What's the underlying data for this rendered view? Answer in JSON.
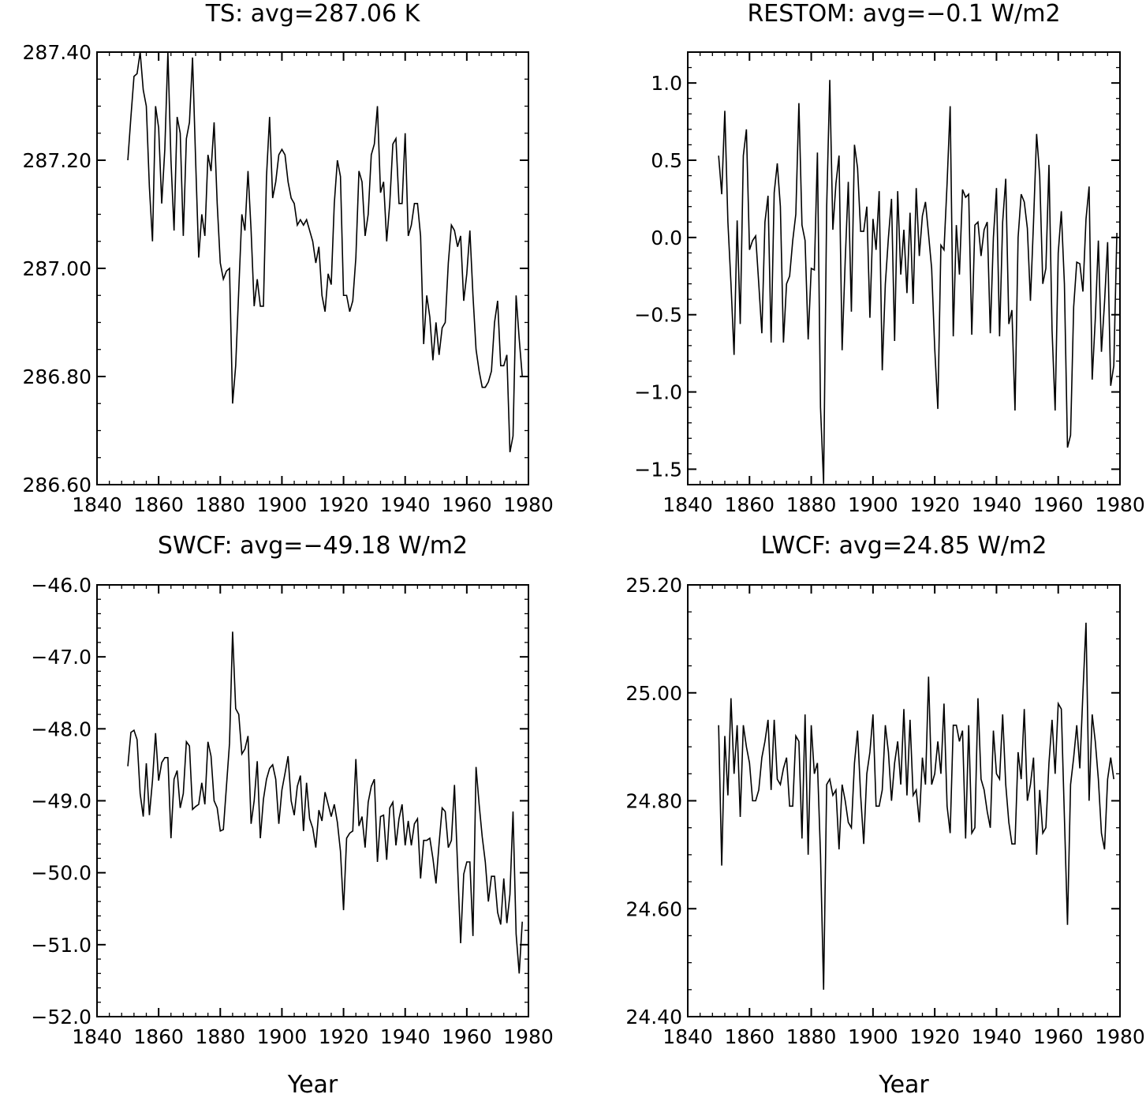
{
  "figure": {
    "background": "#ffffff",
    "line_color": "#000000",
    "x_axis_label": "Year"
  },
  "chart_data": [
    {
      "type": "line",
      "title": "TS: avg=287.06 K",
      "xlabel": "",
      "ylabel": "",
      "xlim": [
        1840,
        1980
      ],
      "ylim": [
        286.6,
        287.4
      ],
      "xticks": [
        1840,
        1860,
        1880,
        1900,
        1920,
        1940,
        1960,
        1980
      ],
      "xtick_labels": [
        "1840",
        "1860",
        "1880",
        "1900",
        "1920",
        "1940",
        "1960",
        "1980"
      ],
      "yticks": [
        286.6,
        286.8,
        287.0,
        287.2,
        287.4
      ],
      "ytick_labels": [
        "286.60",
        "286.80",
        "287.00",
        "287.20",
        "287.40"
      ],
      "y_minor_step": 0.05,
      "x_minor_step": 4,
      "grid": false,
      "x_start": 1850,
      "series": [
        {
          "values": [
            287.2,
            287.28,
            287.355,
            287.36,
            287.4,
            287.33,
            287.3,
            287.15,
            287.05,
            287.3,
            287.26,
            287.12,
            287.22,
            287.4,
            287.2,
            287.07,
            287.28,
            287.25,
            287.06,
            287.24,
            287.27,
            287.39,
            287.2,
            287.02,
            287.1,
            287.06,
            287.21,
            287.18,
            287.27,
            287.12,
            287.01,
            286.98,
            286.995,
            287.0,
            286.75,
            286.82,
            286.96,
            287.1,
            287.07,
            287.18,
            287.07,
            286.93,
            286.98,
            286.93,
            286.93,
            287.17,
            287.28,
            287.13,
            287.16,
            287.21,
            287.22,
            287.21,
            287.16,
            287.13,
            287.12,
            287.08,
            287.09,
            287.08,
            287.09,
            287.07,
            287.05,
            287.01,
            287.04,
            286.95,
            286.92,
            286.99,
            286.97,
            287.12,
            287.2,
            287.17,
            286.95,
            286.95,
            286.92,
            286.94,
            287.02,
            287.18,
            287.16,
            287.06,
            287.1,
            287.21,
            287.23,
            287.3,
            287.14,
            287.16,
            287.05,
            287.12,
            287.23,
            287.24,
            287.12,
            287.12,
            287.25,
            287.06,
            287.08,
            287.12,
            287.12,
            287.06,
            286.86,
            286.95,
            286.91,
            286.83,
            286.9,
            286.84,
            286.89,
            286.9,
            287.01,
            287.08,
            287.07,
            287.04,
            287.06,
            286.94,
            286.99,
            287.07,
            286.95,
            286.85,
            286.81,
            286.78,
            286.78,
            286.79,
            286.81,
            286.9,
            286.94,
            286.82,
            286.82,
            286.84,
            286.66,
            286.69,
            286.95,
            286.87,
            286.8
          ]
        }
      ]
    },
    {
      "type": "line",
      "title": "RESTOM: avg=−0.1 W/m2",
      "xlabel": "",
      "ylabel": "",
      "xlim": [
        1840,
        1980
      ],
      "ylim": [
        -1.6,
        1.2
      ],
      "xticks": [
        1840,
        1860,
        1880,
        1900,
        1920,
        1940,
        1960,
        1980
      ],
      "xtick_labels": [
        "1840",
        "1860",
        "1880",
        "1900",
        "1920",
        "1940",
        "1960",
        "1980"
      ],
      "yticks": [
        -1.5,
        -1.0,
        -0.5,
        0.0,
        0.5,
        1.0
      ],
      "ytick_labels": [
        "−1.5",
        "−1.0",
        "−0.5",
        "0.0",
        "0.5",
        "1.0"
      ],
      "y_minor_step": 0.1,
      "x_minor_step": 4,
      "grid": false,
      "x_start": 1850,
      "series": [
        {
          "values": [
            0.53,
            0.28,
            0.82,
            0.1,
            -0.3,
            -0.76,
            0.11,
            -0.56,
            0.53,
            0.7,
            -0.08,
            -0.02,
            0.01,
            -0.3,
            -0.62,
            0.1,
            0.27,
            -0.68,
            0.29,
            0.48,
            0.2,
            -0.68,
            -0.3,
            -0.25,
            -0.02,
            0.15,
            0.87,
            0.08,
            -0.02,
            -0.66,
            -0.2,
            -0.21,
            0.55,
            -1.1,
            -1.59,
            0.2,
            1.02,
            0.05,
            0.35,
            0.53,
            -0.73,
            -0.15,
            0.36,
            -0.48,
            0.6,
            0.45,
            0.04,
            0.04,
            0.2,
            -0.52,
            0.12,
            -0.08,
            0.3,
            -0.86,
            -0.3,
            0.0,
            0.25,
            -0.67,
            0.3,
            -0.24,
            0.05,
            -0.36,
            0.16,
            -0.43,
            0.32,
            -0.12,
            0.14,
            0.23,
            0.02,
            -0.2,
            -0.72,
            -1.11,
            -0.05,
            -0.08,
            0.35,
            0.85,
            -0.64,
            0.08,
            -0.24,
            0.31,
            0.26,
            0.28,
            -0.63,
            0.08,
            0.1,
            -0.12,
            0.05,
            0.1,
            -0.62,
            0.0,
            0.32,
            -0.64,
            0.1,
            0.38,
            -0.56,
            -0.47,
            -1.12,
            0.0,
            0.28,
            0.23,
            0.06,
            -0.41,
            0.1,
            0.67,
            0.4,
            -0.3,
            -0.2,
            0.47,
            -0.6,
            -1.12,
            -0.1,
            0.17,
            -0.3,
            -1.36,
            -1.28,
            -0.45,
            -0.16,
            -0.17,
            -0.35,
            0.12,
            0.33,
            -0.92,
            -0.53,
            -0.02,
            -0.74,
            -0.42,
            -0.03,
            -0.96,
            -0.83,
            0.03
          ]
        }
      ]
    },
    {
      "type": "line",
      "title": "SWCF: avg=−49.18 W/m2",
      "xlabel": "",
      "ylabel": "",
      "xlim": [
        1840,
        1980
      ],
      "ylim": [
        -52.0,
        -46.0
      ],
      "xticks": [
        1840,
        1860,
        1880,
        1900,
        1920,
        1940,
        1960,
        1980
      ],
      "xtick_labels": [
        "1840",
        "1860",
        "1880",
        "1900",
        "1920",
        "1940",
        "1960",
        "1980"
      ],
      "yticks": [
        -52.0,
        -51.0,
        -50.0,
        -49.0,
        -48.0,
        -47.0,
        -46.0
      ],
      "ytick_labels": [
        "−52.0",
        "−51.0",
        "−50.0",
        "−49.0",
        "−48.0",
        "−47.0",
        "−46.0"
      ],
      "y_minor_step": 0.2,
      "x_minor_step": 4,
      "grid": false,
      "x_start": 1850,
      "series": [
        {
          "values": [
            -48.52,
            -48.05,
            -48.02,
            -48.15,
            -48.9,
            -49.22,
            -48.48,
            -49.2,
            -48.72,
            -48.06,
            -48.72,
            -48.47,
            -48.4,
            -48.4,
            -49.52,
            -48.7,
            -48.58,
            -49.1,
            -48.9,
            -48.18,
            -48.24,
            -49.12,
            -49.08,
            -49.05,
            -48.75,
            -49.05,
            -48.18,
            -48.38,
            -49.0,
            -49.1,
            -49.42,
            -49.4,
            -48.8,
            -48.2,
            -46.65,
            -47.72,
            -47.8,
            -48.35,
            -48.28,
            -48.1,
            -49.32,
            -49.0,
            -48.45,
            -49.52,
            -48.98,
            -48.7,
            -48.55,
            -48.5,
            -48.7,
            -49.32,
            -48.85,
            -48.62,
            -48.38,
            -49.0,
            -49.2,
            -48.8,
            -48.65,
            -49.42,
            -48.75,
            -49.25,
            -49.38,
            -49.65,
            -49.13,
            -49.28,
            -48.88,
            -49.05,
            -49.22,
            -49.05,
            -49.3,
            -49.7,
            -50.52,
            -49.52,
            -49.45,
            -49.42,
            -48.42,
            -49.35,
            -49.22,
            -49.65,
            -49.02,
            -48.8,
            -48.7,
            -49.85,
            -49.22,
            -49.2,
            -49.82,
            -49.1,
            -49.02,
            -49.62,
            -49.25,
            -49.05,
            -49.62,
            -49.28,
            -49.62,
            -49.32,
            -49.25,
            -50.08,
            -49.55,
            -49.55,
            -49.52,
            -49.8,
            -50.15,
            -49.6,
            -49.1,
            -49.15,
            -49.65,
            -49.55,
            -48.78,
            -49.9,
            -50.98,
            -50.02,
            -49.85,
            -49.85,
            -50.88,
            -48.53,
            -49.05,
            -49.5,
            -49.85,
            -50.4,
            -50.05,
            -50.05,
            -50.55,
            -50.72,
            -50.08,
            -50.7,
            -50.3,
            -49.15,
            -50.85,
            -51.4,
            -50.68
          ]
        }
      ]
    },
    {
      "type": "line",
      "title": "LWCF: avg=24.85 W/m2",
      "xlabel": "Year",
      "ylabel": "",
      "xlim": [
        1840,
        1980
      ],
      "ylim": [
        24.4,
        25.2
      ],
      "xticks": [
        1840,
        1860,
        1880,
        1900,
        1920,
        1940,
        1960,
        1980
      ],
      "xtick_labels": [
        "1840",
        "1860",
        "1880",
        "1900",
        "1920",
        "1940",
        "1960",
        "1980"
      ],
      "yticks": [
        24.4,
        24.6,
        24.8,
        25.0,
        25.2
      ],
      "ytick_labels": [
        "24.40",
        "24.60",
        "24.80",
        "25.00",
        "25.20"
      ],
      "y_minor_step": 0.05,
      "x_minor_step": 4,
      "grid": false,
      "x_start": 1850,
      "series": [
        {
          "values": [
            24.94,
            24.68,
            24.92,
            24.81,
            24.99,
            24.85,
            24.94,
            24.77,
            24.94,
            24.9,
            24.87,
            24.8,
            24.8,
            24.82,
            24.88,
            24.91,
            24.95,
            24.82,
            24.95,
            24.84,
            24.83,
            24.86,
            24.88,
            24.79,
            24.79,
            24.92,
            24.91,
            24.73,
            24.96,
            24.7,
            24.94,
            24.85,
            24.87,
            24.7,
            24.45,
            24.83,
            24.84,
            24.81,
            24.82,
            24.71,
            24.83,
            24.8,
            24.76,
            24.75,
            24.87,
            24.93,
            24.81,
            24.72,
            24.85,
            24.89,
            24.96,
            24.79,
            24.79,
            24.82,
            24.94,
            24.89,
            24.8,
            24.87,
            24.91,
            24.83,
            24.97,
            24.81,
            24.95,
            24.81,
            24.82,
            24.76,
            24.88,
            24.83,
            25.03,
            24.83,
            24.85,
            24.91,
            24.85,
            24.98,
            24.79,
            24.74,
            24.94,
            24.94,
            24.91,
            24.93,
            24.73,
            24.94,
            24.74,
            24.75,
            24.99,
            24.84,
            24.82,
            24.78,
            24.75,
            24.93,
            24.85,
            24.84,
            24.96,
            24.83,
            24.76,
            24.72,
            24.72,
            24.89,
            24.84,
            24.97,
            24.8,
            24.83,
            24.88,
            24.7,
            24.82,
            24.74,
            24.75,
            24.87,
            24.95,
            24.85,
            24.98,
            24.97,
            24.77,
            24.57,
            24.83,
            24.88,
            24.94,
            24.86,
            25.0,
            25.13,
            24.8,
            24.96,
            24.91,
            24.84,
            24.74,
            24.71,
            24.84,
            24.88,
            24.84
          ]
        }
      ]
    }
  ]
}
